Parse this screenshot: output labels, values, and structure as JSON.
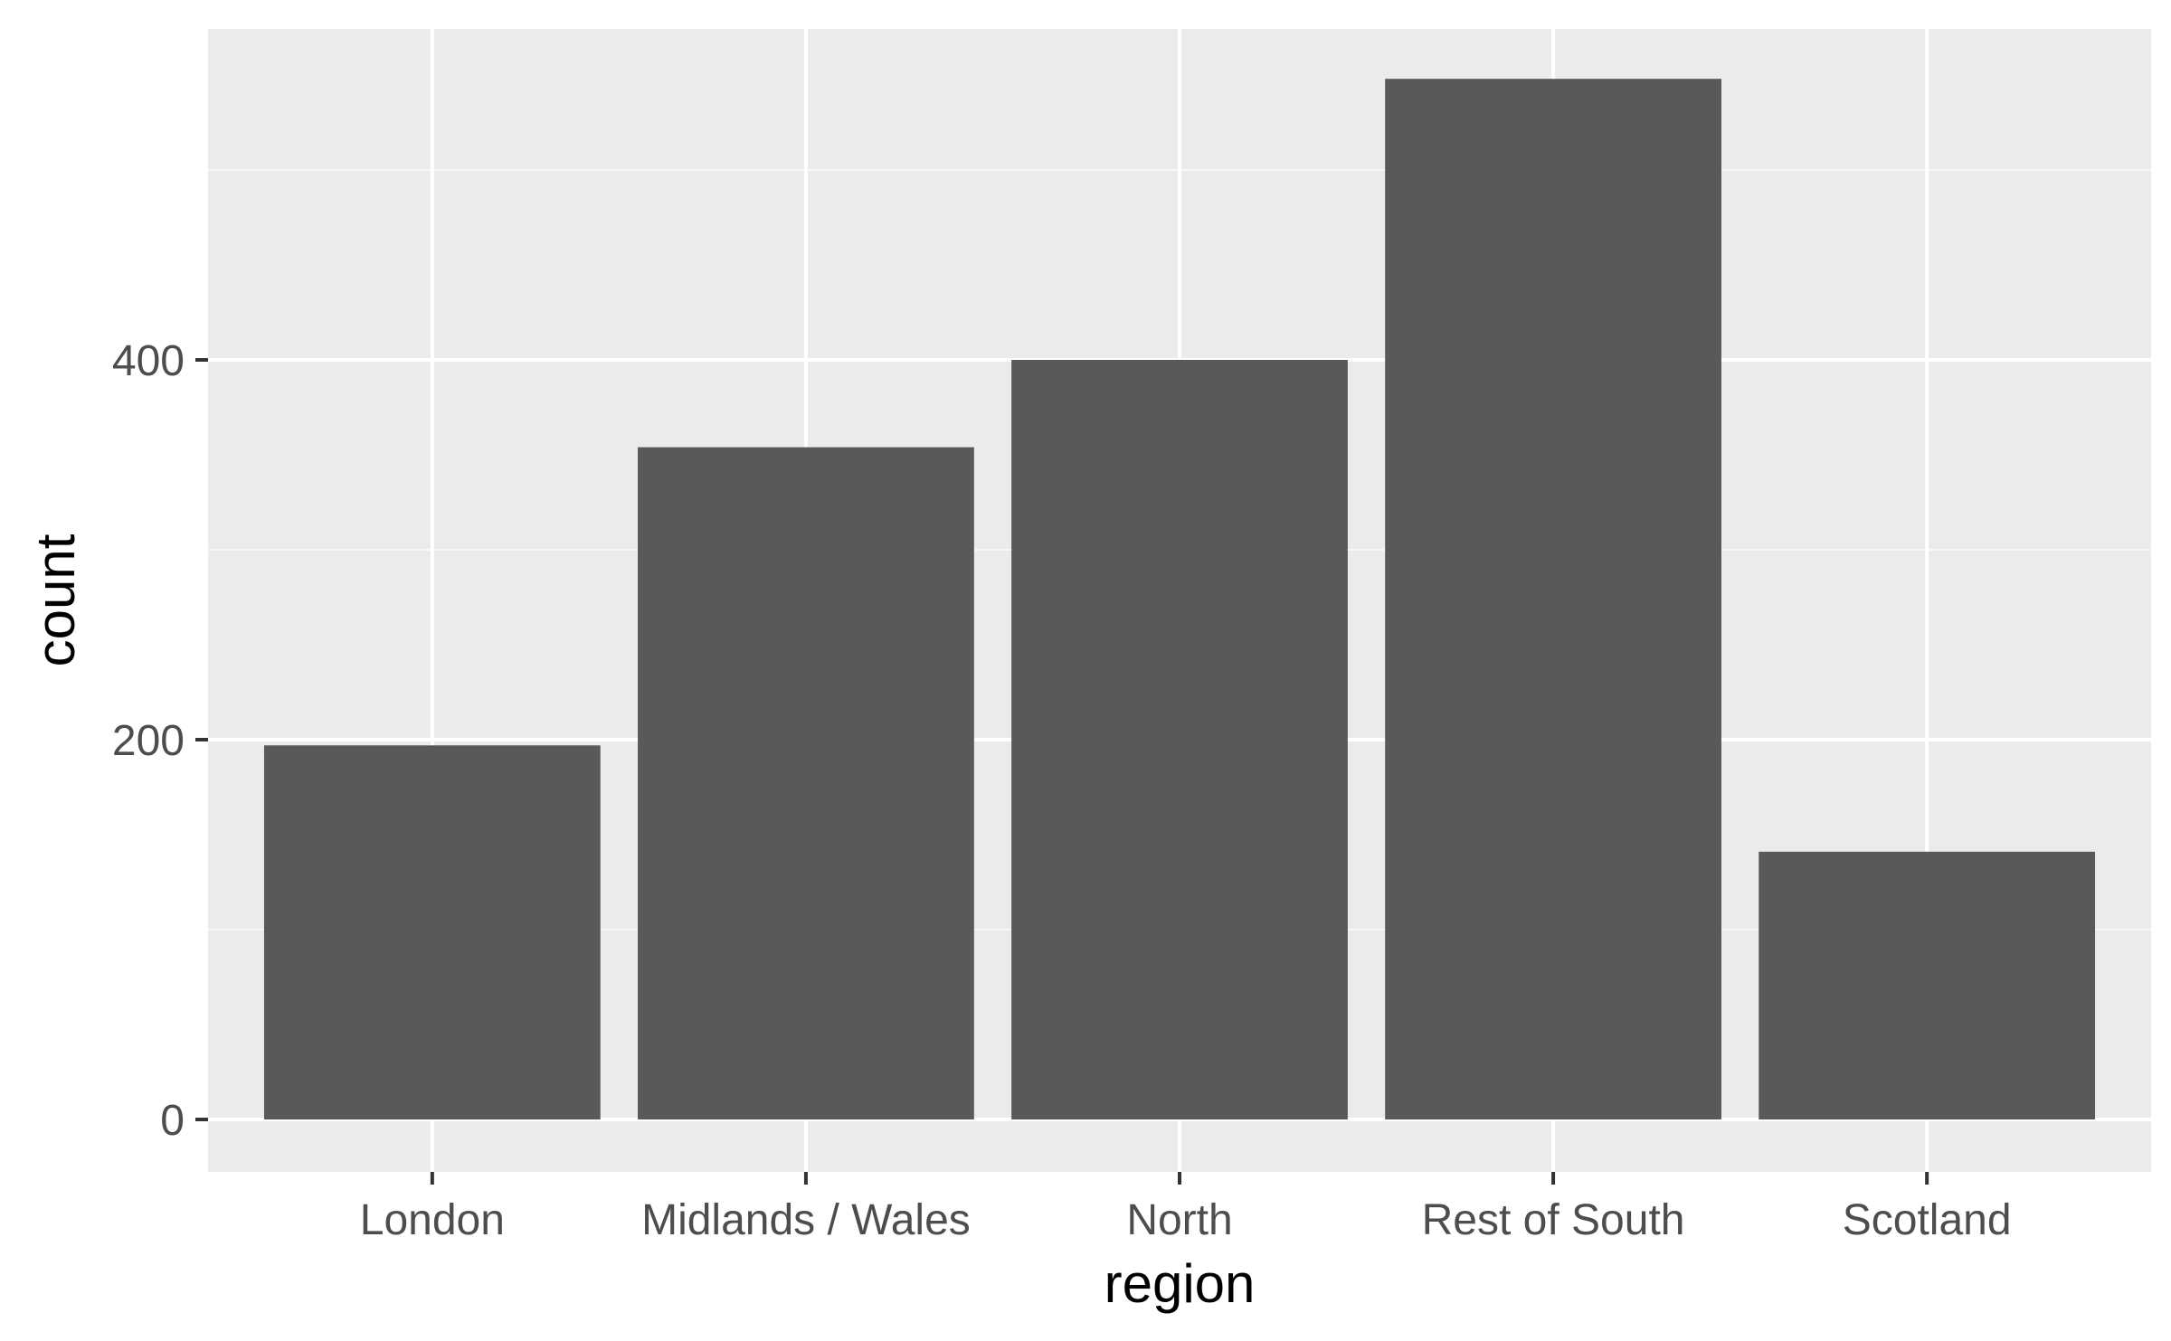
{
  "chart_data": {
    "type": "bar",
    "title": "",
    "xlabel": "region",
    "ylabel": "count",
    "categories": [
      "London",
      "Midlands / Wales",
      "North",
      "Rest of South",
      "Scotland"
    ],
    "values": [
      197,
      354,
      400,
      548,
      141
    ],
    "ylim": [
      0,
      575
    ],
    "yticks": [
      0,
      200,
      400
    ],
    "ytick_labels": [
      "0",
      "200",
      "400"
    ],
    "grid": true,
    "legend": "none",
    "colors": {
      "panel_background": "#ebebeb",
      "grid_major": "#ffffff",
      "grid_minor": "#f7f7f7",
      "bar_fill": "#595959",
      "tick_mark": "#333333",
      "tick_label": "#4d4d4d",
      "axis_title": "#000000"
    }
  }
}
